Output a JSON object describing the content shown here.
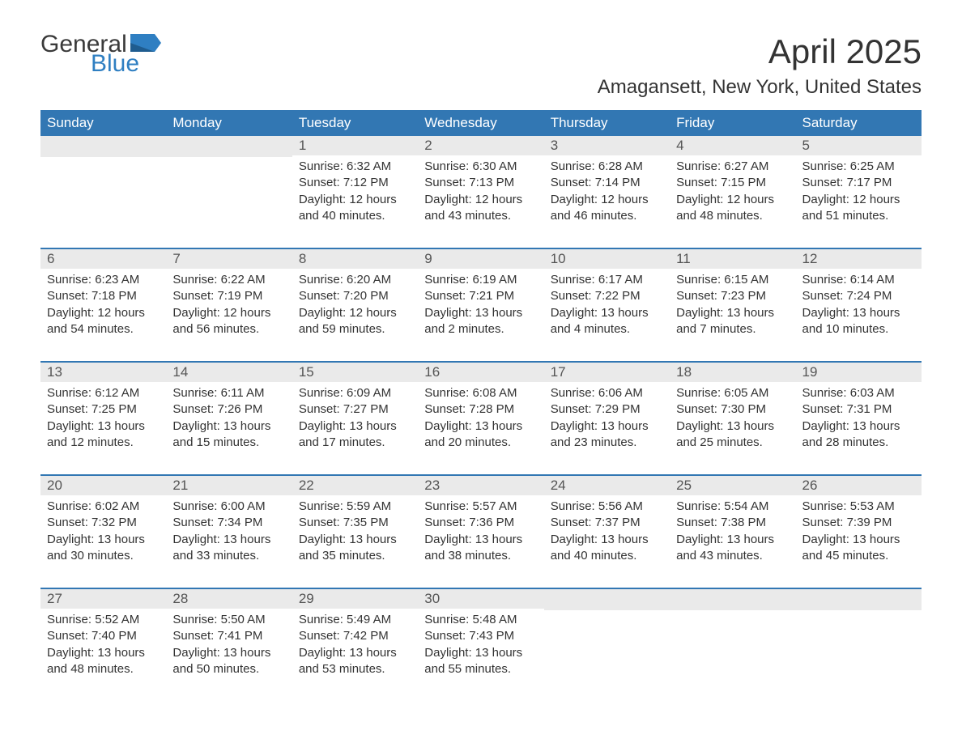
{
  "logo": {
    "word1": "General",
    "word2": "Blue"
  },
  "colors": {
    "header_bg": "#3277b3",
    "header_fg": "#ffffff",
    "daynum_bg": "#eaeaea",
    "accent": "#3277b3",
    "logo_blue": "#2f7fc2",
    "text": "#333333"
  },
  "title": "April 2025",
  "location": "Amagansett, New York, United States",
  "day_names": [
    "Sunday",
    "Monday",
    "Tuesday",
    "Wednesday",
    "Thursday",
    "Friday",
    "Saturday"
  ],
  "weeks": [
    [
      null,
      null,
      {
        "n": "1",
        "sr": "Sunrise: 6:32 AM",
        "ss": "Sunset: 7:12 PM",
        "dl": "Daylight: 12 hours and 40 minutes."
      },
      {
        "n": "2",
        "sr": "Sunrise: 6:30 AM",
        "ss": "Sunset: 7:13 PM",
        "dl": "Daylight: 12 hours and 43 minutes."
      },
      {
        "n": "3",
        "sr": "Sunrise: 6:28 AM",
        "ss": "Sunset: 7:14 PM",
        "dl": "Daylight: 12 hours and 46 minutes."
      },
      {
        "n": "4",
        "sr": "Sunrise: 6:27 AM",
        "ss": "Sunset: 7:15 PM",
        "dl": "Daylight: 12 hours and 48 minutes."
      },
      {
        "n": "5",
        "sr": "Sunrise: 6:25 AM",
        "ss": "Sunset: 7:17 PM",
        "dl": "Daylight: 12 hours and 51 minutes."
      }
    ],
    [
      {
        "n": "6",
        "sr": "Sunrise: 6:23 AM",
        "ss": "Sunset: 7:18 PM",
        "dl": "Daylight: 12 hours and 54 minutes."
      },
      {
        "n": "7",
        "sr": "Sunrise: 6:22 AM",
        "ss": "Sunset: 7:19 PM",
        "dl": "Daylight: 12 hours and 56 minutes."
      },
      {
        "n": "8",
        "sr": "Sunrise: 6:20 AM",
        "ss": "Sunset: 7:20 PM",
        "dl": "Daylight: 12 hours and 59 minutes."
      },
      {
        "n": "9",
        "sr": "Sunrise: 6:19 AM",
        "ss": "Sunset: 7:21 PM",
        "dl": "Daylight: 13 hours and 2 minutes."
      },
      {
        "n": "10",
        "sr": "Sunrise: 6:17 AM",
        "ss": "Sunset: 7:22 PM",
        "dl": "Daylight: 13 hours and 4 minutes."
      },
      {
        "n": "11",
        "sr": "Sunrise: 6:15 AM",
        "ss": "Sunset: 7:23 PM",
        "dl": "Daylight: 13 hours and 7 minutes."
      },
      {
        "n": "12",
        "sr": "Sunrise: 6:14 AM",
        "ss": "Sunset: 7:24 PM",
        "dl": "Daylight: 13 hours and 10 minutes."
      }
    ],
    [
      {
        "n": "13",
        "sr": "Sunrise: 6:12 AM",
        "ss": "Sunset: 7:25 PM",
        "dl": "Daylight: 13 hours and 12 minutes."
      },
      {
        "n": "14",
        "sr": "Sunrise: 6:11 AM",
        "ss": "Sunset: 7:26 PM",
        "dl": "Daylight: 13 hours and 15 minutes."
      },
      {
        "n": "15",
        "sr": "Sunrise: 6:09 AM",
        "ss": "Sunset: 7:27 PM",
        "dl": "Daylight: 13 hours and 17 minutes."
      },
      {
        "n": "16",
        "sr": "Sunrise: 6:08 AM",
        "ss": "Sunset: 7:28 PM",
        "dl": "Daylight: 13 hours and 20 minutes."
      },
      {
        "n": "17",
        "sr": "Sunrise: 6:06 AM",
        "ss": "Sunset: 7:29 PM",
        "dl": "Daylight: 13 hours and 23 minutes."
      },
      {
        "n": "18",
        "sr": "Sunrise: 6:05 AM",
        "ss": "Sunset: 7:30 PM",
        "dl": "Daylight: 13 hours and 25 minutes."
      },
      {
        "n": "19",
        "sr": "Sunrise: 6:03 AM",
        "ss": "Sunset: 7:31 PM",
        "dl": "Daylight: 13 hours and 28 minutes."
      }
    ],
    [
      {
        "n": "20",
        "sr": "Sunrise: 6:02 AM",
        "ss": "Sunset: 7:32 PM",
        "dl": "Daylight: 13 hours and 30 minutes."
      },
      {
        "n": "21",
        "sr": "Sunrise: 6:00 AM",
        "ss": "Sunset: 7:34 PM",
        "dl": "Daylight: 13 hours and 33 minutes."
      },
      {
        "n": "22",
        "sr": "Sunrise: 5:59 AM",
        "ss": "Sunset: 7:35 PM",
        "dl": "Daylight: 13 hours and 35 minutes."
      },
      {
        "n": "23",
        "sr": "Sunrise: 5:57 AM",
        "ss": "Sunset: 7:36 PM",
        "dl": "Daylight: 13 hours and 38 minutes."
      },
      {
        "n": "24",
        "sr": "Sunrise: 5:56 AM",
        "ss": "Sunset: 7:37 PM",
        "dl": "Daylight: 13 hours and 40 minutes."
      },
      {
        "n": "25",
        "sr": "Sunrise: 5:54 AM",
        "ss": "Sunset: 7:38 PM",
        "dl": "Daylight: 13 hours and 43 minutes."
      },
      {
        "n": "26",
        "sr": "Sunrise: 5:53 AM",
        "ss": "Sunset: 7:39 PM",
        "dl": "Daylight: 13 hours and 45 minutes."
      }
    ],
    [
      {
        "n": "27",
        "sr": "Sunrise: 5:52 AM",
        "ss": "Sunset: 7:40 PM",
        "dl": "Daylight: 13 hours and 48 minutes."
      },
      {
        "n": "28",
        "sr": "Sunrise: 5:50 AM",
        "ss": "Sunset: 7:41 PM",
        "dl": "Daylight: 13 hours and 50 minutes."
      },
      {
        "n": "29",
        "sr": "Sunrise: 5:49 AM",
        "ss": "Sunset: 7:42 PM",
        "dl": "Daylight: 13 hours and 53 minutes."
      },
      {
        "n": "30",
        "sr": "Sunrise: 5:48 AM",
        "ss": "Sunset: 7:43 PM",
        "dl": "Daylight: 13 hours and 55 minutes."
      },
      null,
      null,
      null
    ]
  ]
}
